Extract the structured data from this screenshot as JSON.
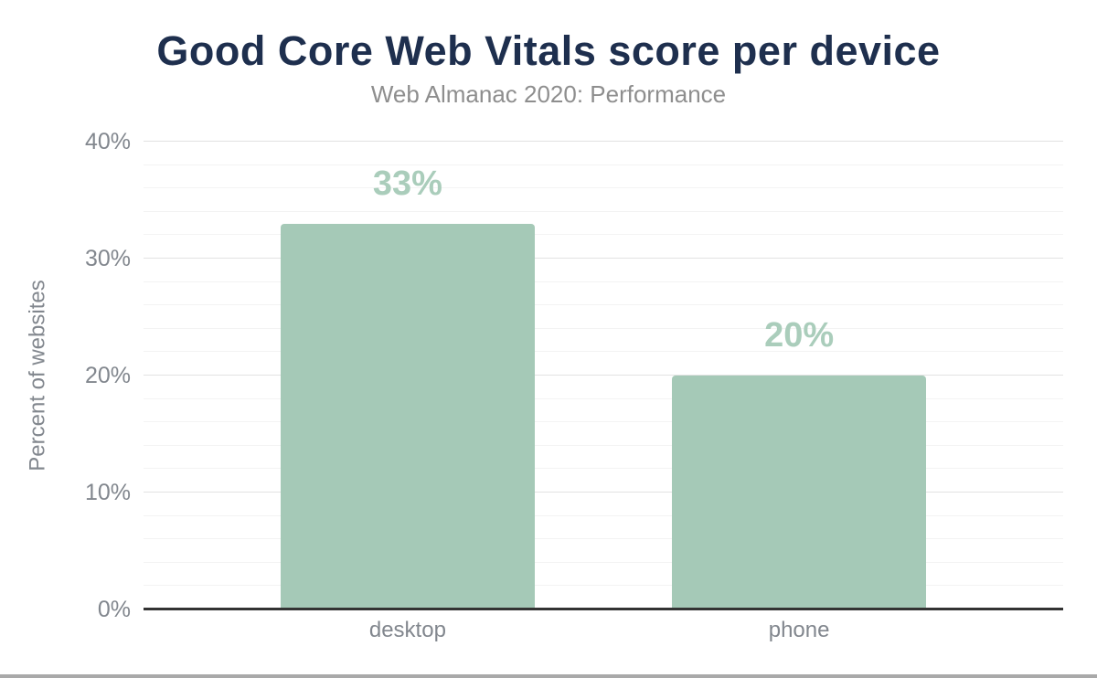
{
  "page": {
    "title": "Good Core Web Vitals score per device",
    "subtitle": "Web Almanac 2020: Performance"
  },
  "chart_data": {
    "type": "bar",
    "title": "Good Core Web Vitals score per device",
    "subtitle": "Web Almanac 2020: Performance",
    "categories": [
      "desktop",
      "phone"
    ],
    "values": [
      33,
      20
    ],
    "value_labels": [
      "33%",
      "20%"
    ],
    "xlabel": "",
    "ylabel": "Percent of websites",
    "ylim": [
      0,
      40
    ],
    "y_major_ticks": [
      0,
      10,
      20,
      30,
      40
    ],
    "y_tick_labels": [
      "0%",
      "10%",
      "20%",
      "30%",
      "40%"
    ],
    "y_minor_step": 2,
    "grid": "horizontal",
    "legend": "none",
    "colors": {
      "bar_fill": "#a5c9b7",
      "bar_label": "#aacdbb",
      "title": "#1e2f4e",
      "subtitle": "#8e8e8e",
      "axis_text": "#82878e",
      "gridline_major": "#e2e2e2",
      "gridline_minor": "#f3f3f3",
      "baseline": "#333333",
      "page_bottom_border": "#a9a9a9"
    }
  }
}
